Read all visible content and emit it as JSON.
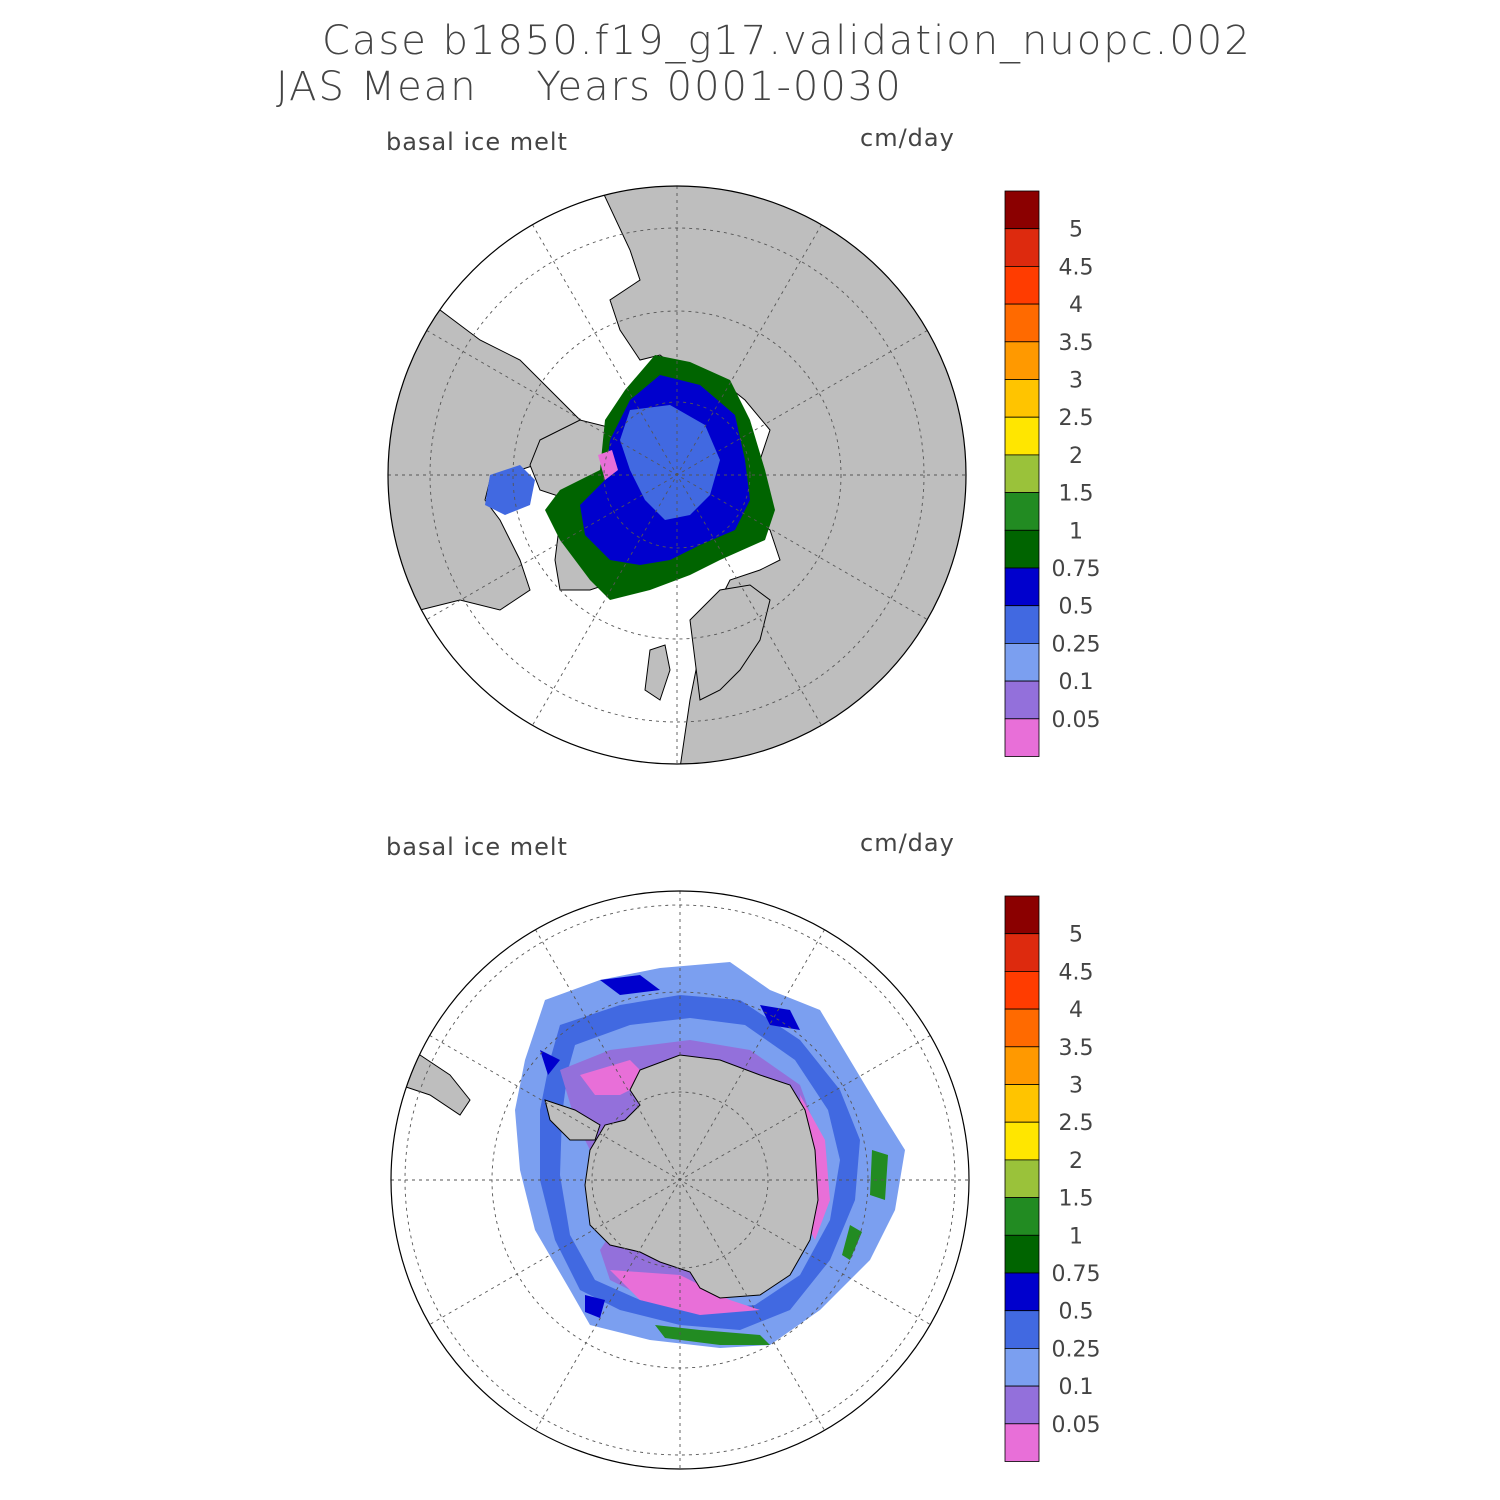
{
  "title": {
    "line1": "Case b1850.f19_g17.validation_nuopc.002",
    "line2": "JAS Mean    Years 0001-0030"
  },
  "panels": [
    {
      "id": "north",
      "variable": "basal ice melt",
      "units": "cm/day",
      "hemisphere": "Arctic (north polar stereographic)"
    },
    {
      "id": "south",
      "variable": "basal ice melt",
      "units": "cm/day",
      "hemisphere": "Antarctic (south polar stereographic)"
    }
  ],
  "colorbar": {
    "labels": [
      "5",
      "4.5",
      "4",
      "3.5",
      "3",
      "2.5",
      "2",
      "1.5",
      "1",
      "0.75",
      "0.5",
      "0.25",
      "0.1",
      "0.05"
    ],
    "colors": [
      "#8b0000",
      "#dd2a0e",
      "#ff3c00",
      "#ff6a00",
      "#ff9900",
      "#ffc400",
      "#ffe600",
      "#9ac23a",
      "#228b22",
      "#006400",
      "#0000cd",
      "#4169e1",
      "#7b9ff0",
      "#9370db",
      "#e86fd8"
    ]
  },
  "colors": {
    "land": "#bebebe",
    "ocean": "#ffffff",
    "outline": "#000000",
    "grid": "#555555"
  }
}
